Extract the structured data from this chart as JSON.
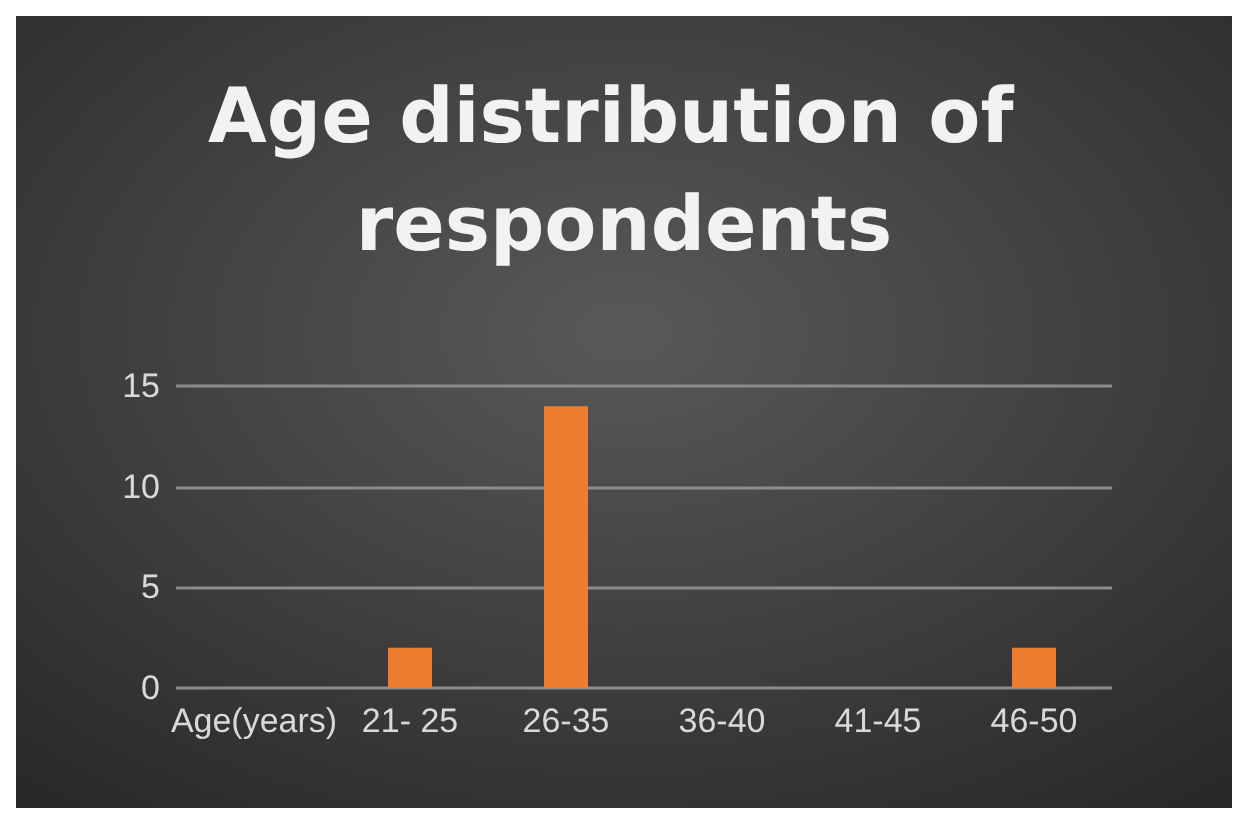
{
  "chart_data": {
    "type": "bar",
    "title": "Age distribution of respondents",
    "categories": [
      "Age(years)",
      "21- 25",
      "26-35",
      "36-40",
      "41-45",
      "46-50"
    ],
    "values": [
      0,
      2,
      14,
      0,
      0,
      2
    ],
    "color": "#ed7d31",
    "ylim": [
      0,
      15
    ],
    "yticks": [
      0,
      5,
      10,
      15
    ],
    "grid": "y"
  }
}
